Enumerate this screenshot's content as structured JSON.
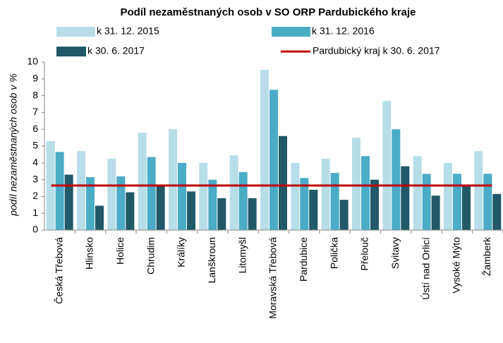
{
  "chart_data": {
    "type": "bar",
    "title": "Podíl nezaměstnaných osob v SO ORP Pardubického kraje",
    "y_label": "podíl nezaměstnaných osob v %",
    "categories": [
      "Česká Třebová",
      "Hlinsko",
      "Holice",
      "Chrudim",
      "Králíky",
      "Lanškroun",
      "Litomyšl",
      "Moravská Třebová",
      "Pardubice",
      "Polička",
      "Přelouč",
      "Svitavy",
      "Ústí nad Orlicí",
      "Vysoké Mýto",
      "Žamberk"
    ],
    "series": [
      {
        "name": "k 31. 12. 2015",
        "color": "#b7dde8",
        "values": [
          5.3,
          4.7,
          4.25,
          5.8,
          6.0,
          4.0,
          4.45,
          9.55,
          4.0,
          4.25,
          5.5,
          7.7,
          4.4,
          4.0,
          4.7
        ]
      },
      {
        "name": "k 31. 12. 2016",
        "color": "#4bacc6",
        "values": [
          4.65,
          3.15,
          3.2,
          4.35,
          4.0,
          3.0,
          3.45,
          8.35,
          3.1,
          3.4,
          4.4,
          6.0,
          3.35,
          3.35,
          3.35
        ]
      },
      {
        "name": "k 30. 6. 2017",
        "color": "#215968",
        "values": [
          3.3,
          1.45,
          2.25,
          2.65,
          2.3,
          1.9,
          1.9,
          5.6,
          2.4,
          1.8,
          3.0,
          3.8,
          2.05,
          2.6,
          2.15
        ]
      }
    ],
    "reference": {
      "name": "Pardubický kraj k 30. 6. 2017",
      "value": 2.65,
      "color": "#c00000"
    },
    "ylim": [
      0,
      10
    ],
    "yticks": [
      0,
      1,
      2,
      3,
      4,
      5,
      6,
      7,
      8,
      9,
      10
    ],
    "grid": false
  }
}
